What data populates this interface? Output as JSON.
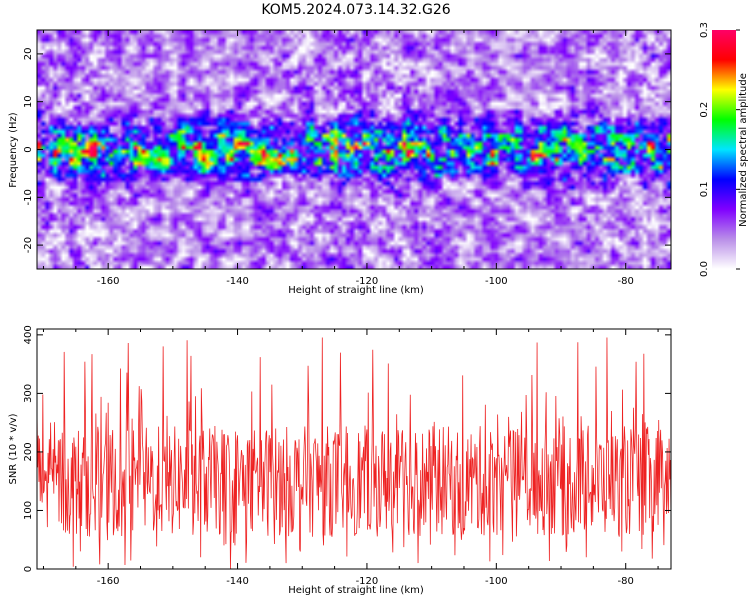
{
  "title": "KOM5.2024.073.14.32.G26",
  "chart_data": [
    {
      "type": "heatmap",
      "title": "KOM5.2024.073.14.32.G26",
      "xlabel": "Height of straight line (km)",
      "ylabel": "Frequency (Hz)",
      "xlim": [
        -171,
        -73
      ],
      "ylim": [
        -25,
        25
      ],
      "x_ticks": [
        -160,
        -140,
        -120,
        -100,
        -80
      ],
      "y_ticks": [
        -20,
        -10,
        0,
        10,
        20
      ],
      "colorbar": {
        "label": "Normalized spectral amplitude",
        "range": [
          0.0,
          0.3
        ],
        "ticks": [
          0.0,
          0.1,
          0.2,
          0.3
        ],
        "tick_labels": [
          "0.0",
          "0.1",
          "0.2",
          "0.3"
        ],
        "stops": [
          "#ffffff",
          "#b98ee8",
          "#8000ff",
          "#0000ff",
          "#00e5ff",
          "#00ff00",
          "#ffff00",
          "#ff0000",
          "#ff0066"
        ]
      },
      "features": {
        "band_center_hz": 0,
        "band_halfwidth_hz": 5,
        "peak_value": 0.3
      },
      "grid": false
    },
    {
      "type": "line",
      "xlabel": "Height of straight line (km)",
      "ylabel": "SNR (10 * v/v)",
      "xlim": [
        -171,
        -73
      ],
      "ylim": [
        0,
        410
      ],
      "x_ticks": [
        -160,
        -140,
        -120,
        -100,
        -80
      ],
      "y_ticks": [
        0,
        100,
        200,
        300,
        400
      ],
      "series": [
        {
          "color": "#ee2222",
          "x_range": [
            -171,
            -73
          ],
          "sample_step_km": 0.1,
          "typical_range": [
            50,
            250
          ],
          "max": 410,
          "min": 0
        }
      ],
      "grid": false
    }
  ]
}
